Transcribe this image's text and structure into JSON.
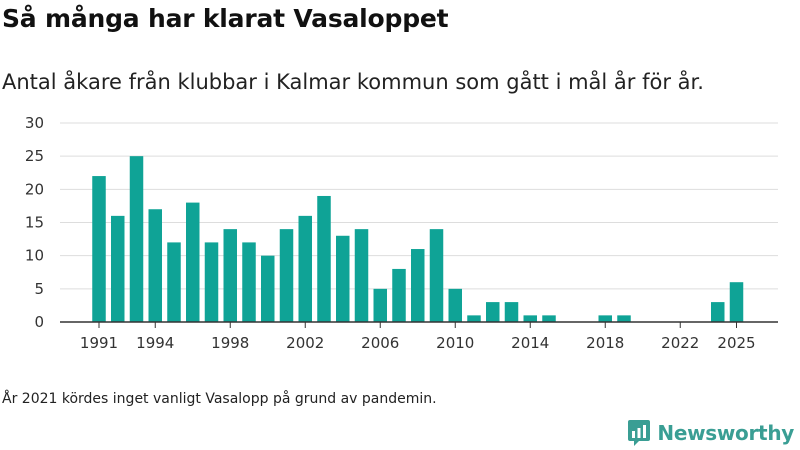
{
  "header": {
    "title": "Så många har klarat Vasaloppet",
    "subtitle": "Antal åkare från klubbar i Kalmar kommun som gått i mål år för år."
  },
  "footnote": "År 2021 kördes inget vanligt Vasalopp på grund av pandemin.",
  "brand": {
    "name": "Newsworthy",
    "logo_icon": "newsworthy-logo-icon",
    "color": "#3a9e94"
  },
  "chart_data": {
    "type": "bar",
    "x": [
      1991,
      1992,
      1993,
      1994,
      1995,
      1996,
      1997,
      1998,
      1999,
      2000,
      2001,
      2002,
      2003,
      2004,
      2005,
      2006,
      2007,
      2008,
      2009,
      2010,
      2011,
      2012,
      2013,
      2014,
      2015,
      2016,
      2017,
      2018,
      2019,
      2020,
      2021,
      2022,
      2023,
      2024,
      2025
    ],
    "values": [
      22,
      16,
      25,
      17,
      12,
      18,
      12,
      14,
      12,
      10,
      14,
      16,
      19,
      13,
      14,
      5,
      8,
      11,
      14,
      5,
      1,
      3,
      3,
      1,
      1,
      0,
      0,
      1,
      1,
      0,
      0,
      0,
      0,
      3,
      6
    ],
    "x_tick_labels": [
      "1991",
      "1994",
      "1998",
      "2002",
      "2006",
      "2010",
      "2014",
      "2018",
      "2022",
      "2025"
    ],
    "y_tick_labels": [
      "0",
      "5",
      "10",
      "15",
      "20",
      "25",
      "30"
    ],
    "ylim": [
      0,
      30
    ],
    "grid": true,
    "bar_color": "#0fa396"
  }
}
